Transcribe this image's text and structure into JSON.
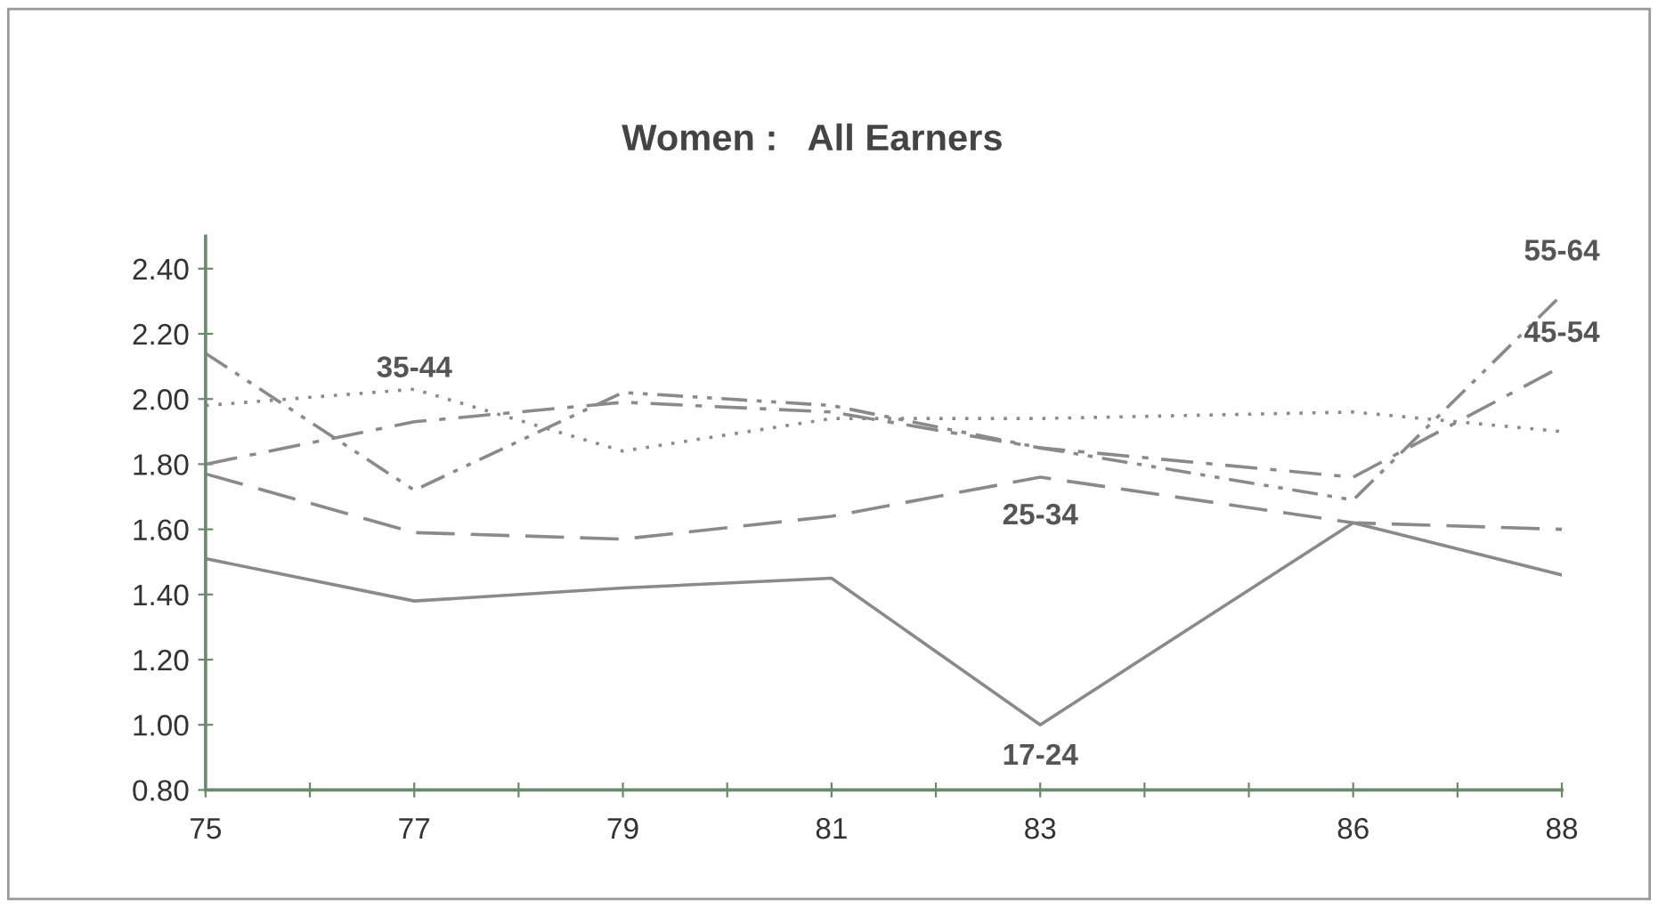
{
  "chart_data": {
    "type": "line",
    "title": "Women :   All Earners",
    "x": [
      75,
      77,
      79,
      81,
      83,
      86,
      88
    ],
    "series": [
      {
        "color": "#8a8a8a",
        "line_style": "solid",
        "values": [
          1.51,
          1.38,
          1.42,
          1.45,
          1.0,
          1.62,
          1.46
        ]
      },
      {
        "color": "#8a8a8a",
        "line_style": "dashed",
        "values": [
          1.77,
          1.59,
          1.57,
          1.64,
          1.76,
          1.62,
          1.6
        ]
      },
      {
        "color": "#8a8a8a",
        "line_style": "dotted",
        "values": [
          1.98,
          2.03,
          1.84,
          1.94,
          1.94,
          1.96,
          1.9
        ]
      },
      {
        "color": "#8a8a8a",
        "line_style": "dashdot",
        "values": [
          1.8,
          1.93,
          1.99,
          1.96,
          1.85,
          1.76,
          2.1
        ]
      },
      {
        "color": "#8a8a8a",
        "line_style": "dashdotdot",
        "values": [
          2.14,
          1.72,
          2.02,
          1.98,
          1.85,
          1.69,
          2.32
        ]
      }
    ],
    "annotations": [
      {
        "text": "35-44",
        "x": 77,
        "y": 2.03
      },
      {
        "text": "25-34",
        "x": 83,
        "y": 1.76
      },
      {
        "text": "17-24",
        "x": 83,
        "y": 1.0
      },
      {
        "text": "55-64",
        "x": 88,
        "y": 2.32
      },
      {
        "text": "45-54",
        "x": 88,
        "y": 2.1
      }
    ],
    "xlim": [
      75,
      88
    ],
    "xticks": [
      75,
      {
        "value": 76,
        "label": null
      },
      77,
      {
        "value": 78,
        "label": null
      },
      79,
      {
        "value": 80,
        "label": null
      },
      81,
      {
        "value": 82,
        "label": null
      },
      83,
      {
        "value": 84,
        "label": null
      },
      {
        "value": 85,
        "label": null
      },
      86,
      {
        "value": 87,
        "label": null
      },
      88
    ],
    "ylim": [
      0.8,
      2.5
    ],
    "yticks": [
      {
        "value": 0.8,
        "label": "0.80"
      },
      {
        "value": 1.0,
        "label": "1.00"
      },
      {
        "value": 1.2,
        "label": "1.20"
      },
      {
        "value": 1.4,
        "label": "1.40"
      },
      {
        "value": 1.6,
        "label": "1.60"
      },
      {
        "value": 1.8,
        "label": "1.80"
      },
      {
        "value": 2.0,
        "label": "2.00"
      },
      {
        "value": 2.2,
        "label": "2.20"
      },
      {
        "value": 2.4,
        "label": "2.40"
      }
    ],
    "grid": false,
    "legend": false
  }
}
